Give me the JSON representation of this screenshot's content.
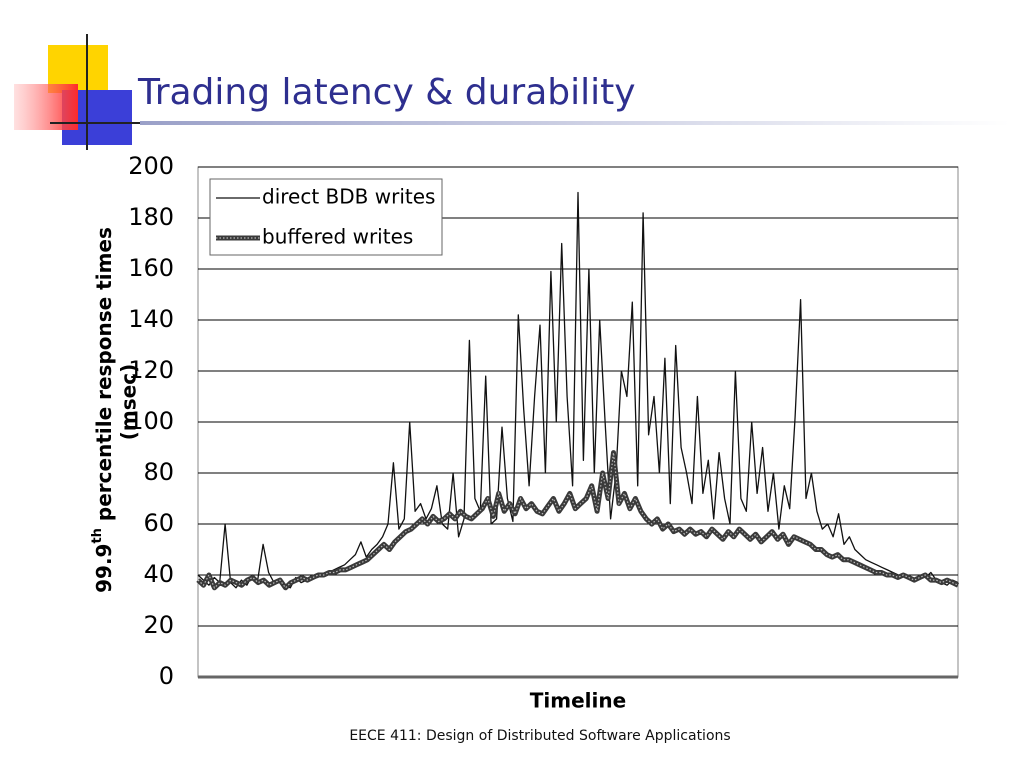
{
  "title": "Trading latency & durability",
  "footer": "EECE 411: Design of Distributed Software Applications",
  "chart_data": {
    "type": "line",
    "y_label": {
      "base": "99.9",
      "sup": "th",
      "rest": " percentile response times",
      "unit": "(msec)"
    },
    "x_label": "Timeline",
    "ylim": [
      0,
      200
    ],
    "yticks": [
      0,
      20,
      40,
      60,
      80,
      100,
      120,
      140,
      160,
      180,
      200
    ],
    "grid": true,
    "legend": "top-left",
    "series": [
      {
        "name": "direct BDB writes",
        "color": "#111111",
        "values": [
          40,
          38,
          36,
          39,
          37,
          60,
          37,
          35,
          38,
          36,
          40,
          38,
          52,
          41,
          37,
          38,
          36,
          35,
          39,
          37,
          38,
          40,
          39,
          40,
          41,
          42,
          43,
          44,
          46,
          48,
          53,
          47,
          50,
          52,
          55,
          60,
          84,
          58,
          62,
          100,
          65,
          68,
          62,
          66,
          75,
          60,
          58,
          80,
          55,
          62,
          132,
          70,
          65,
          118,
          60,
          62,
          98,
          70,
          61,
          142,
          105,
          75,
          110,
          138,
          80,
          159,
          100,
          170,
          110,
          75,
          190,
          85,
          160,
          80,
          140,
          100,
          62,
          80,
          120,
          110,
          147,
          75,
          182,
          95,
          110,
          80,
          125,
          68,
          130,
          90,
          80,
          68,
          110,
          72,
          85,
          62,
          88,
          70,
          60,
          120,
          70,
          65,
          100,
          72,
          90,
          65,
          80,
          58,
          75,
          66,
          102,
          148,
          70,
          80,
          65,
          58,
          60,
          55,
          64,
          52,
          55,
          50,
          48,
          46,
          45,
          44,
          43,
          42,
          41,
          40,
          40,
          39,
          38,
          40,
          39,
          41,
          38,
          37,
          36,
          38,
          37
        ]
      },
      {
        "name": "buffered writes",
        "color": "#3a3a3a",
        "values": [
          38,
          36,
          40,
          35,
          37,
          36,
          38,
          37,
          36,
          38,
          39,
          37,
          38,
          36,
          37,
          38,
          35,
          37,
          38,
          39,
          38,
          39,
          40,
          40,
          41,
          41,
          42,
          42,
          43,
          44,
          45,
          46,
          48,
          50,
          52,
          50,
          53,
          55,
          57,
          58,
          60,
          62,
          60,
          63,
          61,
          62,
          64,
          62,
          65,
          63,
          62,
          64,
          66,
          70,
          63,
          72,
          65,
          68,
          64,
          70,
          66,
          68,
          65,
          64,
          67,
          70,
          65,
          68,
          72,
          66,
          68,
          70,
          75,
          65,
          80,
          70,
          88,
          68,
          72,
          66,
          70,
          65,
          62,
          60,
          62,
          58,
          60,
          57,
          58,
          56,
          58,
          56,
          57,
          55,
          58,
          56,
          54,
          57,
          55,
          58,
          56,
          54,
          56,
          53,
          55,
          57,
          54,
          56,
          52,
          55,
          54,
          53,
          52,
          50,
          50,
          48,
          47,
          48,
          46,
          46,
          45,
          44,
          43,
          42,
          41,
          41,
          40,
          40,
          39,
          40,
          39,
          38,
          39,
          40,
          38,
          38,
          37,
          38,
          37,
          36
        ]
      }
    ]
  }
}
